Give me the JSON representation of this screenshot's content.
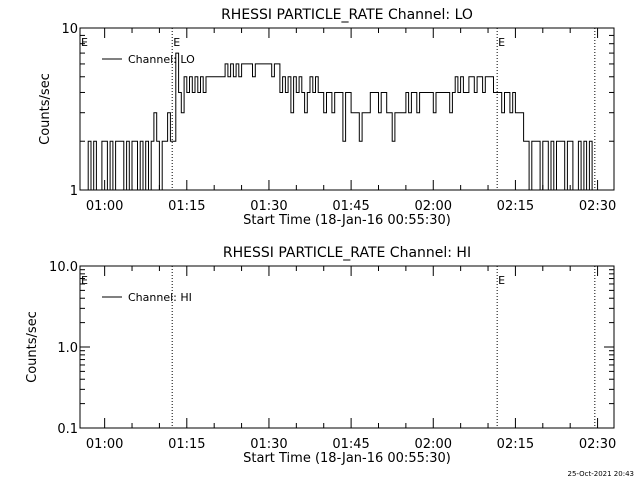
{
  "footer": {
    "timestamp": "25-Oct-2021 20:43"
  },
  "chart_data": [
    {
      "type": "line",
      "title": "RHESSI PARTICLE_RATE Channel: LO",
      "xlabel": "Start Time (18-Jan-16 00:55:30)",
      "ylabel": "Counts/sec",
      "xlim": [
        "00:55:30",
        "02:33:00"
      ],
      "ylim": [
        1,
        10
      ],
      "yscale": "log",
      "xticks": [
        "01:00",
        "01:15",
        "01:30",
        "01:45",
        "02:00",
        "02:15",
        "02:30"
      ],
      "yticks": [
        "1",
        "10"
      ],
      "legend": {
        "label": "Channel: LO",
        "placement": "top-left"
      },
      "markers": [
        {
          "time": "01:12:20",
          "label": "E"
        },
        {
          "time": "02:11:40",
          "label": "E"
        },
        {
          "time": "02:29:30",
          "label": ""
        }
      ],
      "left_marker_label": "E",
      "series": [
        {
          "name": "Channel: LO",
          "x": [
            "00:55:30",
            "00:57:00",
            "00:57:30",
            "00:58:00",
            "00:58:30",
            "00:59:00",
            "00:59:30",
            "01:00:00",
            "01:00:30",
            "01:01:00",
            "01:01:30",
            "01:02:00",
            "01:02:30",
            "01:03:00",
            "01:03:30",
            "01:04:00",
            "01:04:30",
            "01:05:00",
            "01:05:30",
            "01:06:00",
            "01:06:30",
            "01:07:00",
            "01:07:30",
            "01:08:00",
            "01:08:30",
            "01:09:00",
            "01:09:30",
            "01:10:00",
            "01:10:30",
            "01:11:00",
            "01:11:30",
            "01:12:00",
            "01:12:30",
            "01:13:00",
            "01:13:30",
            "01:14:00",
            "01:14:30",
            "01:15:00",
            "01:15:30",
            "01:16:00",
            "01:16:30",
            "01:17:00",
            "01:17:30",
            "01:18:00",
            "01:18:30",
            "01:19:00",
            "01:19:30",
            "01:20:00",
            "01:20:30",
            "01:21:00",
            "01:21:30",
            "01:22:00",
            "01:22:30",
            "01:23:00",
            "01:23:30",
            "01:24:00",
            "01:24:30",
            "01:25:00",
            "01:25:30",
            "01:26:00",
            "01:26:30",
            "01:27:00",
            "01:27:30",
            "01:28:00",
            "01:28:30",
            "01:29:00",
            "01:29:30",
            "01:30:00",
            "01:30:30",
            "01:31:00",
            "01:31:30",
            "01:32:00",
            "01:32:30",
            "01:33:00",
            "01:33:30",
            "01:34:00",
            "01:34:30",
            "01:35:00",
            "01:35:30",
            "01:36:00",
            "01:36:30",
            "01:37:00",
            "01:37:30",
            "01:38:00",
            "01:38:30",
            "01:39:00",
            "01:39:30",
            "01:40:00",
            "01:40:30",
            "01:41:00",
            "01:41:30",
            "01:42:00",
            "01:42:30",
            "01:43:00",
            "01:43:30",
            "01:44:00",
            "01:44:30",
            "01:45:00",
            "01:45:30",
            "01:46:00",
            "01:46:30",
            "01:47:00",
            "01:47:30",
            "01:48:00",
            "01:48:30",
            "01:49:00",
            "01:49:30",
            "01:50:00",
            "01:50:30",
            "01:51:00",
            "01:51:30",
            "01:52:00",
            "01:52:30",
            "01:53:00",
            "01:53:30",
            "01:54:00",
            "01:54:30",
            "01:55:00",
            "01:55:30",
            "01:56:00",
            "01:56:30",
            "01:57:00",
            "01:57:30",
            "01:58:00",
            "01:58:30",
            "01:59:00",
            "01:59:30",
            "02:00:00",
            "02:00:30",
            "02:01:00",
            "02:01:30",
            "02:02:00",
            "02:02:30",
            "02:03:00",
            "02:03:30",
            "02:04:00",
            "02:04:30",
            "02:05:00",
            "02:05:30",
            "02:06:00",
            "02:06:30",
            "02:07:00",
            "02:07:30",
            "02:08:00",
            "02:08:30",
            "02:09:00",
            "02:09:30",
            "02:10:00",
            "02:10:30",
            "02:11:00",
            "02:11:30",
            "02:12:00",
            "02:12:30",
            "02:13:00",
            "02:13:30",
            "02:14:00",
            "02:14:30",
            "02:15:00",
            "02:15:30",
            "02:16:00",
            "02:16:30",
            "02:17:00",
            "02:17:30",
            "02:18:00",
            "02:18:30",
            "02:19:00",
            "02:19:30",
            "02:20:00",
            "02:20:30",
            "02:21:00",
            "02:21:30",
            "02:22:00",
            "02:22:30",
            "02:23:00",
            "02:23:30",
            "02:24:00",
            "02:24:30",
            "02:25:00",
            "02:25:30",
            "02:26:00",
            "02:26:30",
            "02:27:00",
            "02:27:30",
            "02:28:00",
            "02:28:30",
            "02:29:00",
            "02:29:30"
          ],
          "y": [
            1,
            2,
            1,
            2,
            1,
            1,
            2,
            2,
            1,
            2,
            1,
            2,
            2,
            2,
            1,
            2,
            1,
            2,
            2,
            1,
            2,
            1,
            2,
            1,
            2,
            3,
            2,
            1,
            2,
            2,
            3,
            2,
            2,
            7,
            4,
            3,
            5,
            4,
            5,
            4,
            5,
            4,
            5,
            4,
            5,
            5,
            5,
            5,
            5,
            5,
            5,
            6,
            5,
            6,
            5,
            6,
            5,
            6,
            6,
            6,
            6,
            5,
            6,
            6,
            6,
            6,
            6,
            6,
            5,
            6,
            6,
            4,
            5,
            4,
            5,
            3,
            5,
            4,
            5,
            4,
            3,
            4,
            5,
            4,
            5,
            4,
            4,
            3,
            4,
            4,
            3,
            4,
            4,
            4,
            2,
            4,
            4,
            3,
            3,
            3,
            2,
            3,
            3,
            3,
            4,
            4,
            4,
            3,
            4,
            4,
            3,
            3,
            2,
            3,
            3,
            3,
            3,
            4,
            3,
            4,
            4,
            3,
            4,
            4,
            4,
            4,
            4,
            3,
            4,
            4,
            4,
            4,
            4,
            3,
            4,
            5,
            4,
            5,
            4,
            4,
            5,
            5,
            4,
            5,
            5,
            4,
            5,
            5,
            5,
            4,
            4,
            4,
            3,
            4,
            4,
            3,
            4,
            3,
            3,
            3,
            2,
            2,
            1,
            2,
            2,
            2,
            1,
            2,
            2,
            1,
            2,
            1,
            2,
            2,
            2,
            1,
            2,
            2,
            1,
            1,
            2,
            1,
            2,
            1,
            2,
            1,
            1
          ]
        }
      ]
    },
    {
      "type": "line",
      "title": "RHESSI PARTICLE_RATE Channel: HI",
      "xlabel": "Start Time (18-Jan-16 00:55:30)",
      "ylabel": "Counts/sec",
      "xlim": [
        "00:55:30",
        "02:33:00"
      ],
      "ylim": [
        0.1,
        10.0
      ],
      "yscale": "log",
      "xticks": [
        "01:00",
        "01:15",
        "01:30",
        "01:45",
        "02:00",
        "02:15",
        "02:30"
      ],
      "yticks": [
        "0.1",
        "1.0",
        "10.0"
      ],
      "legend": {
        "label": "Channel: HI",
        "placement": "top-left"
      },
      "markers": [
        {
          "time": "01:12:20",
          "label": ""
        },
        {
          "time": "02:11:40",
          "label": "E"
        },
        {
          "time": "02:29:30",
          "label": ""
        }
      ],
      "left_marker_label": "E",
      "series": [
        {
          "name": "Channel: HI",
          "x": [],
          "y": []
        }
      ]
    }
  ]
}
